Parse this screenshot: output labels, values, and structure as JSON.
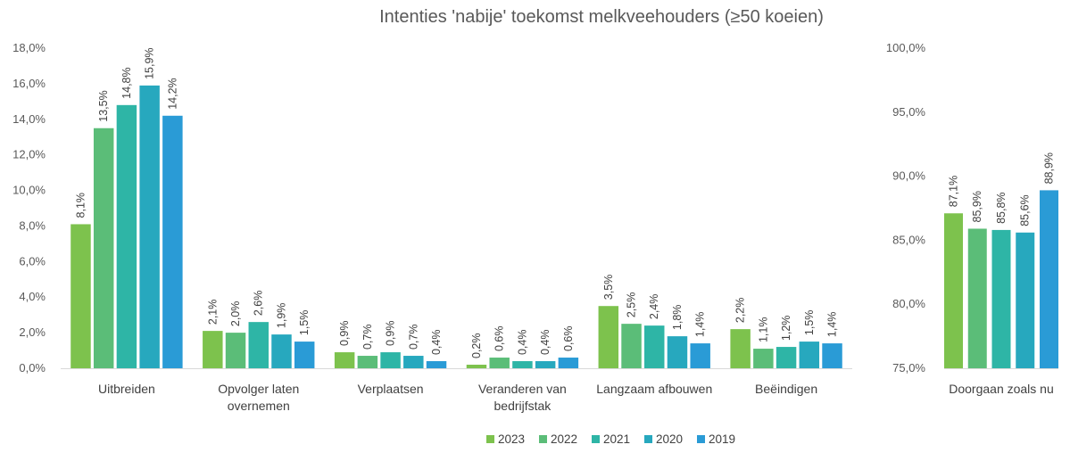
{
  "chart_data": [
    {
      "type": "bar",
      "title": "Intenties 'nabije' toekomst melkveehouders (≥50 koeien)",
      "ylim": [
        0,
        18
      ],
      "yticks": [
        "0,0%",
        "2,0%",
        "4,0%",
        "6,0%",
        "8,0%",
        "10,0%",
        "12,0%",
        "14,0%",
        "16,0%",
        "18,0%"
      ],
      "categories": [
        [
          "Uitbreiden"
        ],
        [
          "Opvolger laten",
          "overnemen"
        ],
        [
          "Verplaatsen"
        ],
        [
          "Veranderen van",
          "bedrijfstak"
        ],
        [
          "Langzaam afbouwen"
        ],
        [
          "Beëindigen"
        ]
      ],
      "series": [
        {
          "name": "2023",
          "color": "#7dc24d",
          "values": [
            8.1,
            2.1,
            0.9,
            0.2,
            3.5,
            2.2
          ],
          "labels": [
            "8,1%",
            "2,1%",
            "0,9%",
            "0,2%",
            "3,5%",
            "2,2%"
          ]
        },
        {
          "name": "2022",
          "color": "#5bbd78",
          "values": [
            13.5,
            2.0,
            0.7,
            0.6,
            2.5,
            1.1
          ],
          "labels": [
            "13,5%",
            "2,0%",
            "0,7%",
            "0,6%",
            "2,5%",
            "1,1%"
          ]
        },
        {
          "name": "2021",
          "color": "#2eb5a6",
          "values": [
            14.8,
            2.6,
            0.9,
            0.4,
            2.4,
            1.2
          ],
          "labels": [
            "14,8%",
            "2,6%",
            "0,9%",
            "0,4%",
            "2,4%",
            "1,2%"
          ]
        },
        {
          "name": "2020",
          "color": "#27a8be",
          "values": [
            15.9,
            1.9,
            0.7,
            0.4,
            1.8,
            1.5
          ],
          "labels": [
            "15,9%",
            "1,9%",
            "0,7%",
            "0,4%",
            "1,8%",
            "1,5%"
          ]
        },
        {
          "name": "2019",
          "color": "#2a9bd6",
          "values": [
            14.2,
            1.5,
            0.4,
            0.6,
            1.4,
            1.4
          ],
          "labels": [
            "14,2%",
            "1,5%",
            "0,4%",
            "0,6%",
            "1,4%",
            "1,4%"
          ]
        }
      ],
      "legend": "bottom",
      "grid": false
    },
    {
      "type": "bar",
      "ylim": [
        75,
        100
      ],
      "yticks": [
        "75,0%",
        "80,0%",
        "85,0%",
        "90,0%",
        "95,0%",
        "100,0%"
      ],
      "categories": [
        [
          "Doorgaan zoals nu"
        ]
      ],
      "series": [
        {
          "name": "2023",
          "color": "#7dc24d",
          "values": [
            87.1
          ],
          "labels": [
            "87,1%"
          ]
        },
        {
          "name": "2022",
          "color": "#5bbd78",
          "values": [
            85.9
          ],
          "labels": [
            "85,9%"
          ]
        },
        {
          "name": "2021",
          "color": "#2eb5a6",
          "values": [
            85.8
          ],
          "labels": [
            "85,8%"
          ]
        },
        {
          "name": "2020",
          "color": "#27a8be",
          "values": [
            85.6
          ],
          "labels": [
            "85,6%"
          ]
        },
        {
          "name": "2019",
          "color": "#2a9bd6",
          "values": [
            88.9
          ],
          "labels": [
            "88,9%"
          ]
        }
      ],
      "grid": false
    }
  ]
}
